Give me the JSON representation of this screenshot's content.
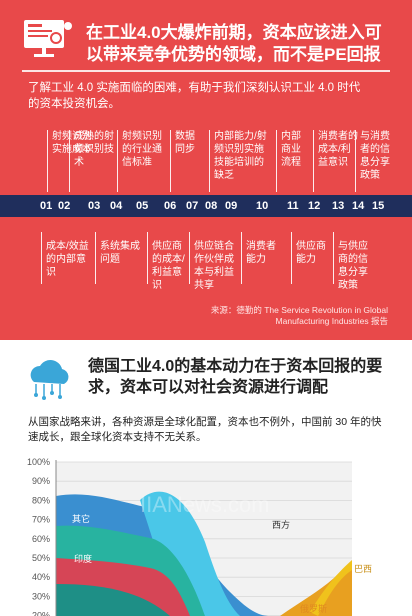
{
  "panel1": {
    "title": "在工业4.0大爆炸前期，资本应该进入可以带来竞争优势的领域，而不是PE回报",
    "intro": "了解工业 4.0 实施面临的困难，有助于我们深刻认识工业 4.0 时代的资本投资机会。",
    "top_steps": [
      {
        "num": "01",
        "text": "射频识别实施成本"
      },
      {
        "num": "03",
        "text": "成熟的射频识别技术"
      },
      {
        "num": "05",
        "text": "射频识别的行业通信标准"
      },
      {
        "num": "07",
        "text": "数据同步"
      },
      {
        "num": "09",
        "text": "内部能力/射频识别实施技能培训的缺乏"
      },
      {
        "num": "11",
        "text": "内部商业流程"
      },
      {
        "num": "13",
        "text": "消费者的成本/利益意识"
      },
      {
        "num": "15",
        "text": "与消费者的信息分享政策"
      }
    ],
    "bottom_steps": [
      {
        "num": "02",
        "text": "成本/效益的内部意识"
      },
      {
        "num": "04",
        "text": "系统集成问题"
      },
      {
        "num": "06",
        "text": "供应商的成本/利益意识"
      },
      {
        "num": "08",
        "text": "供应链合作伙伴成本与利益共享"
      },
      {
        "num": "10",
        "text": "消费者能力"
      },
      {
        "num": "12",
        "text": "供应商能力"
      },
      {
        "num": "14",
        "text": "与供应商的信息分享政策"
      }
    ],
    "numbers": [
      "01",
      "02",
      "03",
      "04",
      "05",
      "06",
      "07",
      "08",
      "09",
      "10",
      "11",
      "12",
      "13",
      "14",
      "15"
    ],
    "source": "来源：德勤的 The Service Revolution in Global Manufacturing Industries 报告"
  },
  "panel2": {
    "title": "德国工业4.0的基本动力在于资本回报的要求，资本可以对社会资源进行调配",
    "intro": "从国家战略来讲，各种资源是全球化配置，资本也不例外，中国前 30 年的快速成长，跟全球化资本支持不无关系。"
  },
  "chart_data": {
    "type": "area",
    "y_ticks": [
      "100%",
      "90%",
      "80%",
      "70%",
      "60%",
      "50%",
      "40%",
      "30%",
      "20%"
    ],
    "ylim": [
      20,
      100
    ],
    "grid": true,
    "series_labels": [
      "其它",
      "印度",
      "西方",
      "巴西",
      "俄罗斯"
    ],
    "colors": {
      "other": "#3a8fd0",
      "india": "#28b3a0",
      "china": "#d64556",
      "west": "#f2f2f2",
      "brazil": "#f0c21c",
      "russia": "#e8a020",
      "cyan": "#4ac7e8"
    },
    "watermark": "IIANews.com"
  }
}
